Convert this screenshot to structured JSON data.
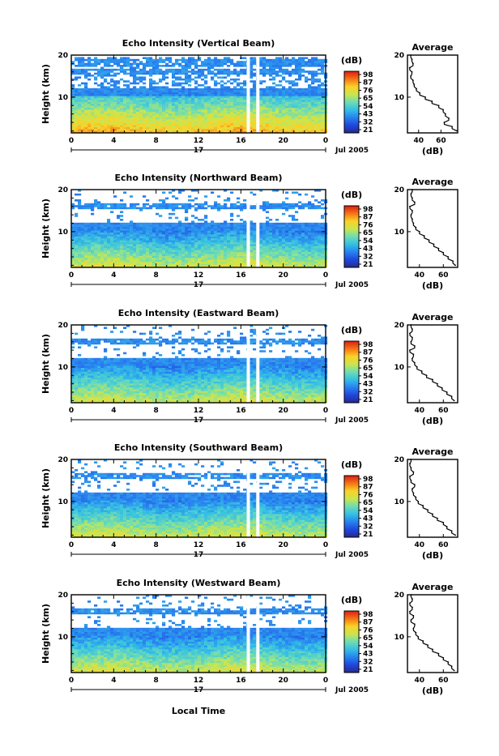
{
  "figure": {
    "x_axis_label": "Local Time",
    "date_label": "Jul 2005",
    "day_label": "17",
    "colorbar_unit": "(dB)",
    "average_title": "Average",
    "average_xlabel": "(dB)",
    "y_axis_label": "Height (km)"
  },
  "chart_data": [
    {
      "type": "heatmap",
      "title": "Echo Intensity (Vertical Beam)",
      "ylabel": "Height (km)",
      "x_ticks": [
        "0",
        "4",
        "8",
        "12",
        "16",
        "20",
        "0"
      ],
      "y_ticks": [
        "10",
        "20"
      ],
      "xlim": [
        0,
        24
      ],
      "ylim": [
        1.5,
        20
      ],
      "colorbar_ticks": [
        "98",
        "87",
        "76",
        "65",
        "54",
        "43",
        "32",
        "21"
      ],
      "colorbar_range": [
        21,
        98
      ],
      "profile_y_ticks": [
        "10",
        "20"
      ],
      "profile_x_ticks": [
        "40",
        "60"
      ],
      "profile_xlim": [
        30,
        75
      ],
      "profile": [
        {
          "height": 2,
          "db": 74
        },
        {
          "height": 3,
          "db": 70
        },
        {
          "height": 4,
          "db": 63
        },
        {
          "height": 5,
          "db": 67
        },
        {
          "height": 6,
          "db": 64
        },
        {
          "height": 7,
          "db": 62
        },
        {
          "height": 8,
          "db": 58
        },
        {
          "height": 9,
          "db": 52
        },
        {
          "height": 10,
          "db": 46
        },
        {
          "height": 11,
          "db": 41
        },
        {
          "height": 12,
          "db": 38
        },
        {
          "height": 13,
          "db": 36
        },
        {
          "height": 14,
          "db": 35
        },
        {
          "height": 15,
          "db": 33
        },
        {
          "height": 16,
          "db": 34
        },
        {
          "height": 17,
          "db": 32
        },
        {
          "height": 18,
          "db": 35
        },
        {
          "height": 19,
          "db": 34
        },
        {
          "height": 20,
          "db": 33
        }
      ]
    },
    {
      "type": "heatmap",
      "title": "Echo Intensity (Northward Beam)",
      "ylabel": "Height (km)",
      "x_ticks": [
        "0",
        "4",
        "8",
        "12",
        "16",
        "20",
        "0"
      ],
      "y_ticks": [
        "10",
        "20"
      ],
      "xlim": [
        0,
        24
      ],
      "ylim": [
        1.5,
        20
      ],
      "colorbar_ticks": [
        "98",
        "87",
        "76",
        "65",
        "54",
        "43",
        "32",
        "21"
      ],
      "colorbar_range": [
        21,
        98
      ],
      "profile_y_ticks": [
        "10",
        "20"
      ],
      "profile_x_ticks": [
        "40",
        "60"
      ],
      "profile_xlim": [
        30,
        72
      ],
      "profile": [
        {
          "height": 2,
          "db": 70
        },
        {
          "height": 3,
          "db": 68
        },
        {
          "height": 4,
          "db": 64
        },
        {
          "height": 5,
          "db": 60
        },
        {
          "height": 6,
          "db": 56
        },
        {
          "height": 7,
          "db": 52
        },
        {
          "height": 8,
          "db": 48
        },
        {
          "height": 9,
          "db": 44
        },
        {
          "height": 10,
          "db": 40
        },
        {
          "height": 11,
          "db": 37
        },
        {
          "height": 12,
          "db": 35
        },
        {
          "height": 13,
          "db": 34
        },
        {
          "height": 14,
          "db": 33
        },
        {
          "height": 15,
          "db": 34
        },
        {
          "height": 16,
          "db": 32
        },
        {
          "height": 17,
          "db": 36
        },
        {
          "height": 18,
          "db": 34
        },
        {
          "height": 19,
          "db": 33
        },
        {
          "height": 20,
          "db": 34
        }
      ]
    },
    {
      "type": "heatmap",
      "title": "Echo Intensity (Eastward Beam)",
      "ylabel": "Height (km)",
      "x_ticks": [
        "0",
        "4",
        "8",
        "12",
        "16",
        "20",
        "0"
      ],
      "y_ticks": [
        "10",
        "20"
      ],
      "xlim": [
        0,
        24
      ],
      "ylim": [
        1.5,
        20
      ],
      "colorbar_ticks": [
        "98",
        "87",
        "76",
        "65",
        "54",
        "43",
        "32",
        "21"
      ],
      "colorbar_range": [
        21,
        98
      ],
      "profile_y_ticks": [
        "10",
        "20"
      ],
      "profile_x_ticks": [
        "40",
        "60"
      ],
      "profile_xlim": [
        30,
        72
      ],
      "profile": [
        {
          "height": 2,
          "db": 69
        },
        {
          "height": 3,
          "db": 67
        },
        {
          "height": 4,
          "db": 63
        },
        {
          "height": 5,
          "db": 59
        },
        {
          "height": 6,
          "db": 55
        },
        {
          "height": 7,
          "db": 51
        },
        {
          "height": 8,
          "db": 46
        },
        {
          "height": 9,
          "db": 42
        },
        {
          "height": 10,
          "db": 38
        },
        {
          "height": 11,
          "db": 36
        },
        {
          "height": 12,
          "db": 34
        },
        {
          "height": 13,
          "db": 35
        },
        {
          "height": 14,
          "db": 32
        },
        {
          "height": 15,
          "db": 36
        },
        {
          "height": 16,
          "db": 33
        },
        {
          "height": 17,
          "db": 34
        },
        {
          "height": 18,
          "db": 32
        },
        {
          "height": 19,
          "db": 34
        },
        {
          "height": 20,
          "db": 33
        }
      ]
    },
    {
      "type": "heatmap",
      "title": "Echo Intensity (Southward Beam)",
      "ylabel": "Height (km)",
      "x_ticks": [
        "0",
        "4",
        "8",
        "12",
        "16",
        "20",
        "0"
      ],
      "y_ticks": [
        "10",
        "20"
      ],
      "xlim": [
        0,
        24
      ],
      "ylim": [
        1.5,
        20
      ],
      "colorbar_ticks": [
        "98",
        "87",
        "76",
        "65",
        "54",
        "43",
        "32",
        "21"
      ],
      "colorbar_range": [
        21,
        98
      ],
      "profile_y_ticks": [
        "10",
        "20"
      ],
      "profile_x_ticks": [
        "40",
        "60"
      ],
      "profile_xlim": [
        30,
        72
      ],
      "profile": [
        {
          "height": 2,
          "db": 70
        },
        {
          "height": 3,
          "db": 67
        },
        {
          "height": 4,
          "db": 63
        },
        {
          "height": 5,
          "db": 60
        },
        {
          "height": 6,
          "db": 55
        },
        {
          "height": 7,
          "db": 51
        },
        {
          "height": 8,
          "db": 47
        },
        {
          "height": 9,
          "db": 43
        },
        {
          "height": 10,
          "db": 39
        },
        {
          "height": 11,
          "db": 37
        },
        {
          "height": 12,
          "db": 35
        },
        {
          "height": 13,
          "db": 34
        },
        {
          "height": 14,
          "db": 36
        },
        {
          "height": 15,
          "db": 33
        },
        {
          "height": 16,
          "db": 32
        },
        {
          "height": 17,
          "db": 35
        },
        {
          "height": 18,
          "db": 33
        },
        {
          "height": 19,
          "db": 32
        },
        {
          "height": 20,
          "db": 33
        }
      ]
    },
    {
      "type": "heatmap",
      "title": "Echo Intensity (Westward Beam)",
      "ylabel": "Height (km)",
      "x_ticks": [
        "0",
        "4",
        "8",
        "12",
        "16",
        "20",
        "0"
      ],
      "y_ticks": [
        "10",
        "20"
      ],
      "xlim": [
        0,
        24
      ],
      "ylim": [
        1.5,
        20
      ],
      "colorbar_ticks": [
        "98",
        "87",
        "76",
        "65",
        "54",
        "43",
        "32",
        "21"
      ],
      "colorbar_range": [
        21,
        98
      ],
      "profile_y_ticks": [
        "10",
        "20"
      ],
      "profile_x_ticks": [
        "40",
        "60"
      ],
      "profile_xlim": [
        30,
        72
      ],
      "profile": [
        {
          "height": 2,
          "db": 69
        },
        {
          "height": 3,
          "db": 67
        },
        {
          "height": 4,
          "db": 64
        },
        {
          "height": 5,
          "db": 60
        },
        {
          "height": 6,
          "db": 56
        },
        {
          "height": 7,
          "db": 51
        },
        {
          "height": 8,
          "db": 47
        },
        {
          "height": 9,
          "db": 43
        },
        {
          "height": 10,
          "db": 39
        },
        {
          "height": 11,
          "db": 37
        },
        {
          "height": 12,
          "db": 35
        },
        {
          "height": 13,
          "db": 36
        },
        {
          "height": 14,
          "db": 33
        },
        {
          "height": 15,
          "db": 35
        },
        {
          "height": 16,
          "db": 32
        },
        {
          "height": 17,
          "db": 34
        },
        {
          "height": 18,
          "db": 32
        },
        {
          "height": 19,
          "db": 34
        },
        {
          "height": 20,
          "db": 33
        }
      ]
    }
  ]
}
